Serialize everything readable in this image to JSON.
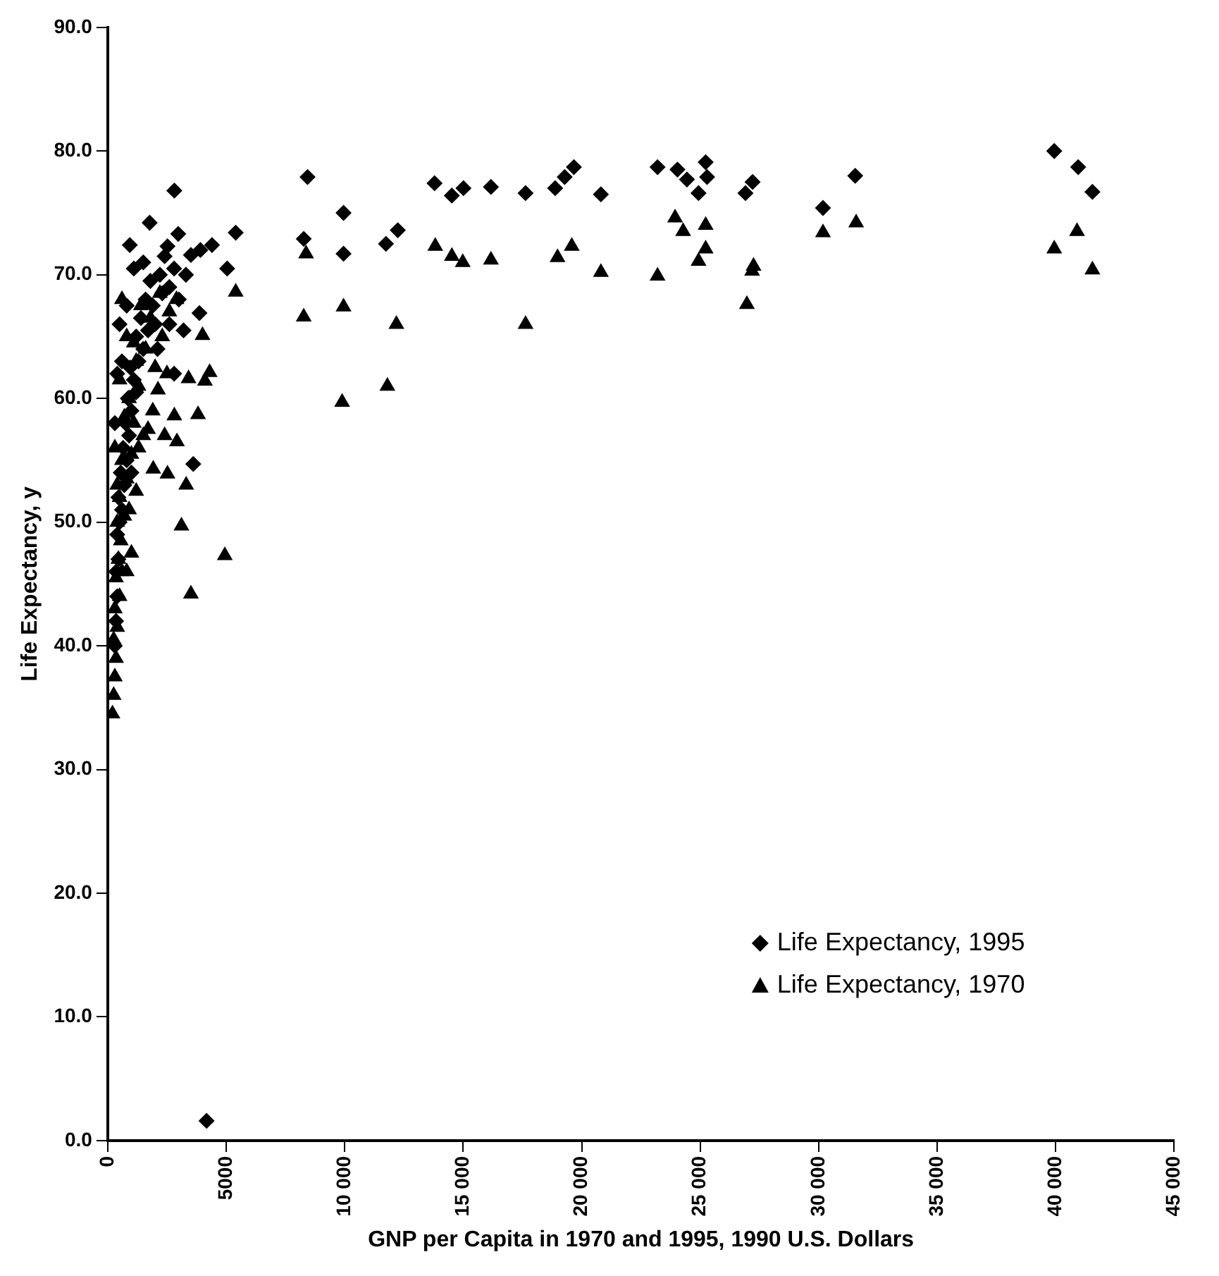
{
  "chart_data": {
    "type": "scatter",
    "xlabel": "GNP per Capita in 1970 and 1995, 1990 U.S. Dollars",
    "ylabel": "Life Expectancy, y",
    "xlim": [
      0,
      45000
    ],
    "xticks": [
      0,
      5000,
      {
        "value": 10000,
        "label": "10 000"
      },
      {
        "value": 15000,
        "label": "15 000"
      },
      {
        "value": 20000,
        "label": "20 000"
      },
      {
        "value": 25000,
        "label": "25 000"
      },
      {
        "value": 30000,
        "label": "30 000"
      },
      {
        "value": 35000,
        "label": "35 000"
      },
      {
        "value": 40000,
        "label": "40 000"
      },
      {
        "value": 45000,
        "label": "45 000"
      }
    ],
    "ylim": [
      0,
      90
    ],
    "yticks": [
      {
        "value": 0,
        "label": "0.0"
      },
      {
        "value": 10,
        "label": "10.0"
      },
      {
        "value": 20,
        "label": "20.0"
      },
      {
        "value": 30,
        "label": "30.0"
      },
      {
        "value": 40,
        "label": "40.0"
      },
      {
        "value": 50,
        "label": "50.0"
      },
      {
        "value": 60,
        "label": "60.0"
      },
      {
        "value": 70,
        "label": "70.0"
      },
      {
        "value": 80,
        "label": "80.0"
      },
      {
        "value": 90,
        "label": "90.0"
      }
    ],
    "grid": false,
    "legend": "bottom right",
    "series": [
      {
        "name": "Life Expectancy, 1995",
        "color": "#000000",
        "marker": "diamond",
        "x": [
          8430,
          9950,
          8270,
          9950,
          11740,
          12240,
          13790,
          14520,
          15010,
          16170,
          17630,
          18880,
          19280,
          19670,
          20810,
          23200,
          24040,
          24440,
          25230,
          25290,
          24930,
          27210,
          26910,
          31540,
          30180,
          39940,
          40950,
          41550,
          2810,
          1770,
          930,
          2975,
          2520,
          5400,
          5040,
          4400,
          3910,
          3510,
          3870,
          3610,
          4170,
          300,
          350,
          400,
          350,
          450,
          400,
          500,
          600,
          450,
          700,
          550,
          800,
          650,
          900,
          750,
          1000,
          850,
          1200,
          1100,
          950,
          1300,
          1500,
          1200,
          1700,
          1400,
          2000,
          1900,
          1600,
          2300,
          800,
          500,
          2600,
          2200,
          1100,
          1500,
          2800,
          3300,
          2400,
          1800,
          3000,
          2600,
          2100,
          3200,
          2800,
          600,
          300,
          400,
          1000
        ],
        "values": [
          77.9,
          75.0,
          72.9,
          71.7,
          72.5,
          73.6,
          77.4,
          76.4,
          77.0,
          77.1,
          76.6,
          77.0,
          77.9,
          78.7,
          76.5,
          78.7,
          78.5,
          77.7,
          79.1,
          77.9,
          76.6,
          77.5,
          76.6,
          78.0,
          75.4,
          80.0,
          78.7,
          76.7,
          76.8,
          74.2,
          72.4,
          73.3,
          72.3,
          73.4,
          70.5,
          72.4,
          72.0,
          71.6,
          66.9,
          54.7,
          1.6,
          40,
          42,
          44,
          46,
          47,
          49,
          50,
          51,
          52,
          53,
          54,
          55,
          56,
          57,
          58,
          59,
          60,
          60.5,
          61.5,
          62.5,
          63,
          64,
          65,
          65.5,
          66.5,
          66,
          67.5,
          68,
          68.5,
          67.5,
          66,
          69,
          70,
          70.5,
          71,
          70.5,
          70,
          71.5,
          69.5,
          68,
          66,
          64,
          65.5,
          62,
          63,
          58,
          62,
          54
        ]
      },
      {
        "name": "Life Expectancy, 1970",
        "color": "#000000",
        "marker": "triangle",
        "x": [
          8370,
          8270,
          9950,
          12180,
          9890,
          11800,
          13820,
          14520,
          14980,
          16170,
          17630,
          18980,
          19580,
          20810,
          23200,
          23940,
          24280,
          25230,
          25230,
          24930,
          27250,
          27190,
          26970,
          30180,
          31580,
          40900,
          39940,
          41550,
          5400,
          4000,
          4300,
          4100,
          3410,
          2120,
          3810,
          2810,
          2920,
          3310,
          3110,
          4940,
          3510,
          2520,
          1920,
          200,
          250,
          300,
          350,
          250,
          400,
          300,
          500,
          350,
          600,
          450,
          800,
          1000,
          550,
          400,
          700,
          900,
          500,
          1200,
          800,
          600,
          1000,
          1300,
          1500,
          1100,
          1700,
          700,
          900,
          1300,
          500,
          1200,
          2000,
          1600,
          2300,
          800,
          1800,
          2600,
          1400,
          2200,
          2900,
          600,
          2500,
          1900,
          2400,
          1100,
          300,
          400
        ],
        "values": [
          71.7,
          66.6,
          67.4,
          66.0,
          59.7,
          61.0,
          72.3,
          71.5,
          71.0,
          71.2,
          66.0,
          71.4,
          72.3,
          70.2,
          69.9,
          74.6,
          73.5,
          74.0,
          72.1,
          71.1,
          70.7,
          70.3,
          67.6,
          73.4,
          74.2,
          73.5,
          72.1,
          70.4,
          68.6,
          65.1,
          62.1,
          61.4,
          61.6,
          60.7,
          58.7,
          58.6,
          56.5,
          53.0,
          49.7,
          47.3,
          44.2,
          53.9,
          54.3,
          34.5,
          36,
          37.5,
          39,
          40.5,
          41.5,
          43,
          44,
          45.5,
          46,
          47,
          46,
          47.5,
          48.5,
          50,
          50.5,
          51,
          52,
          52.5,
          53.5,
          55,
          55.5,
          56,
          57,
          58,
          57.5,
          58.5,
          60,
          61,
          61.5,
          63,
          62.5,
          64,
          65,
          65,
          66.5,
          67,
          67.5,
          68.5,
          68,
          68,
          62,
          59,
          57,
          64.5,
          56,
          53
        ]
      }
    ]
  }
}
